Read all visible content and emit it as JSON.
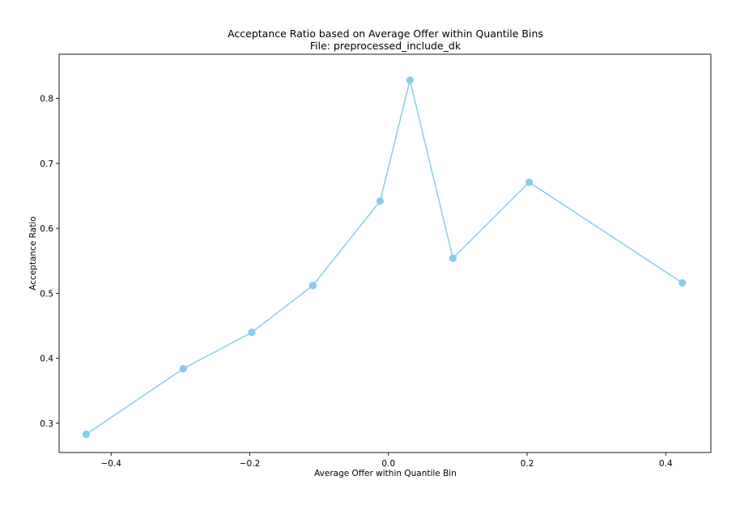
{
  "chart_data": {
    "type": "line",
    "title": "Acceptance Ratio based on Average Offer within Quantile Bins",
    "subtitle": "File: preprocessed_include_dk",
    "xlabel": "Average Offer within Quantile Bin",
    "ylabel": "Acceptance Ratio",
    "xlim": [
      -0.475,
      0.465
    ],
    "ylim": [
      0.255,
      0.868
    ],
    "xticks": [
      -0.4,
      -0.2,
      0.0,
      0.2,
      0.4
    ],
    "xtick_labels": [
      "−0.4",
      "−0.2",
      "0.0",
      "0.2",
      "0.4"
    ],
    "yticks": [
      0.3,
      0.4,
      0.5,
      0.6,
      0.7,
      0.8
    ],
    "ytick_labels": [
      "0.3",
      "0.4",
      "0.5",
      "0.6",
      "0.7",
      "0.8"
    ],
    "grid": false,
    "line_color": "#87ceeb",
    "marker": "circle",
    "x": [
      -0.436,
      -0.296,
      -0.197,
      -0.109,
      -0.012,
      0.031,
      0.093,
      0.203,
      0.424
    ],
    "y": [
      0.283,
      0.384,
      0.44,
      0.512,
      0.642,
      0.828,
      0.554,
      0.671,
      0.516
    ]
  }
}
